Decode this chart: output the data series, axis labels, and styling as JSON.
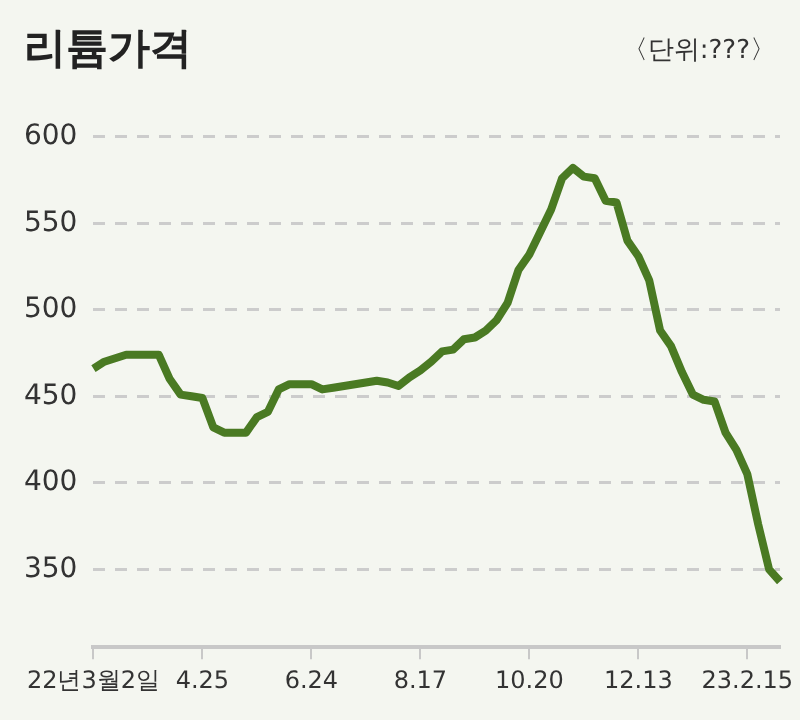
{
  "chart_data": {
    "type": "line",
    "title": "리튬가격",
    "subtitle": "〈단위:???〉",
    "categories": [
      "22년3월2일",
      null,
      null,
      null,
      null,
      null,
      null,
      null,
      null,
      null,
      "4.25",
      null,
      null,
      null,
      null,
      null,
      null,
      null,
      null,
      null,
      "6.24",
      null,
      null,
      null,
      null,
      null,
      null,
      null,
      null,
      null,
      "8.17",
      null,
      null,
      null,
      null,
      null,
      null,
      null,
      null,
      null,
      "10.20",
      null,
      null,
      null,
      null,
      null,
      null,
      null,
      null,
      null,
      "12.13",
      null,
      null,
      null,
      null,
      null,
      null,
      null,
      null,
      null,
      "23.2.15",
      null,
      null,
      null
    ],
    "series": [
      {
        "color": "#4a7a23",
        "values": [
          466,
          470,
          472,
          474,
          474,
          474,
          474,
          460,
          451,
          450,
          449,
          432,
          429,
          429,
          429,
          438,
          441,
          454,
          457,
          457,
          457,
          454,
          455,
          456,
          457,
          458,
          459,
          458,
          456,
          461,
          465,
          470,
          476,
          477,
          483,
          484,
          488,
          494,
          504,
          523,
          532,
          545,
          558,
          576,
          582,
          577,
          576,
          563,
          562,
          540,
          531,
          517,
          488,
          479,
          464,
          451,
          448,
          447,
          429,
          419,
          405,
          376,
          350,
          343
        ]
      }
    ],
    "ylim": [
      305,
      600
    ],
    "yticks": [
      350,
      400,
      450,
      500,
      550,
      600
    ],
    "grid": "y",
    "legend": false,
    "marker": "none",
    "line_style": "solid"
  }
}
